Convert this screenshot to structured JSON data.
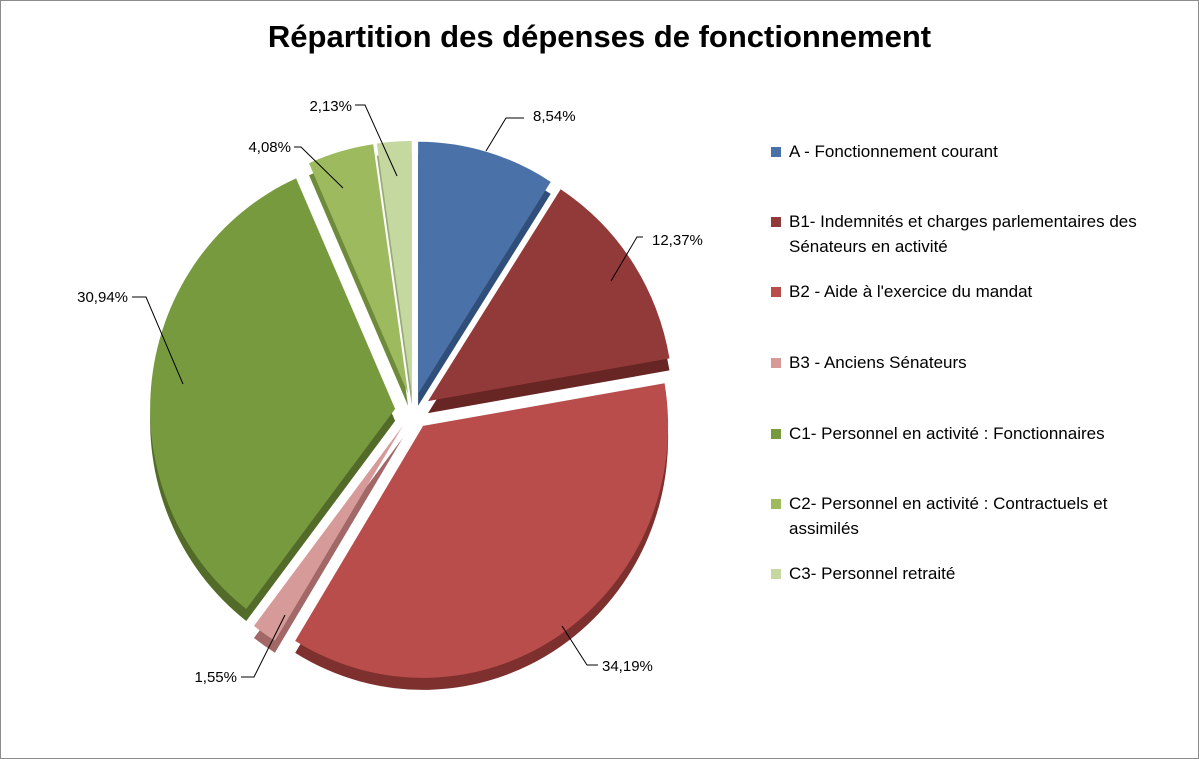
{
  "chart_data": {
    "type": "pie",
    "title": "Répartition des dépenses de fonctionnement",
    "legend_position": "right",
    "slices": [
      {
        "name": "A - Fonctionnement courant",
        "value": 8.54,
        "label": "8,54%",
        "color": "#4a72a8",
        "side_color": "#2f4f7a",
        "exploded": true
      },
      {
        "name": "B1- Indemnités et charges parlementaires des Sénateurs en activité",
        "value": 12.37,
        "label": "12,37%",
        "color": "#923a39",
        "side_color": "#672524",
        "exploded": true
      },
      {
        "name": "B2 - Aide à l'exercice du mandat",
        "value": 34.19,
        "label": "34,19%",
        "color": "#b84d4b",
        "side_color": "#7e302f",
        "exploded": true
      },
      {
        "name": "B3 - Anciens Sénateurs",
        "value": 1.55,
        "label": "1,55%",
        "color": "#d69a99",
        "side_color": "#a26868",
        "exploded": true
      },
      {
        "name": "C1- Personnel en activité : Fonctionnaires",
        "value": 30.94,
        "label": "30,94%",
        "color": "#789a3f",
        "side_color": "#526b28",
        "exploded": true
      },
      {
        "name": "C2- Personnel en activité : Contractuels et assimilés",
        "value": 4.08,
        "label": "4,08%",
        "color": "#9dbb5e",
        "side_color": "#6e8a3b",
        "exploded": true
      },
      {
        "name": "C3- Personnel retraité",
        "value": 2.13,
        "label": "2,13%",
        "color": "#c5d89f",
        "side_color": "#97a974",
        "exploded": true
      }
    ]
  }
}
